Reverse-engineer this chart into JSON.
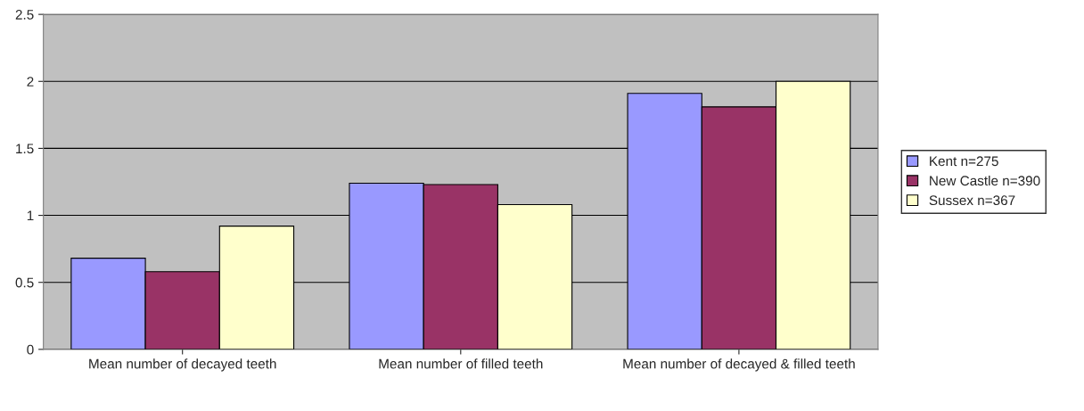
{
  "chart_data": {
    "type": "bar",
    "categories": [
      "Mean number of decayed teeth",
      "Mean number of filled teeth",
      "Mean number of decayed & filled teeth"
    ],
    "series": [
      {
        "name": "Kent n=275",
        "color": "#9999ff",
        "values": [
          0.68,
          1.24,
          1.91
        ]
      },
      {
        "name": "New Castle n=390",
        "color": "#993366",
        "values": [
          0.58,
          1.23,
          1.81
        ]
      },
      {
        "name": "Sussex n=367",
        "color": "#ffffcc",
        "values": [
          0.92,
          1.08,
          2.0
        ]
      }
    ],
    "ylim": [
      0,
      2.5
    ],
    "yticks": [
      0,
      0.5,
      1,
      1.5,
      2,
      2.5
    ],
    "grid": "y",
    "legend": "right"
  }
}
